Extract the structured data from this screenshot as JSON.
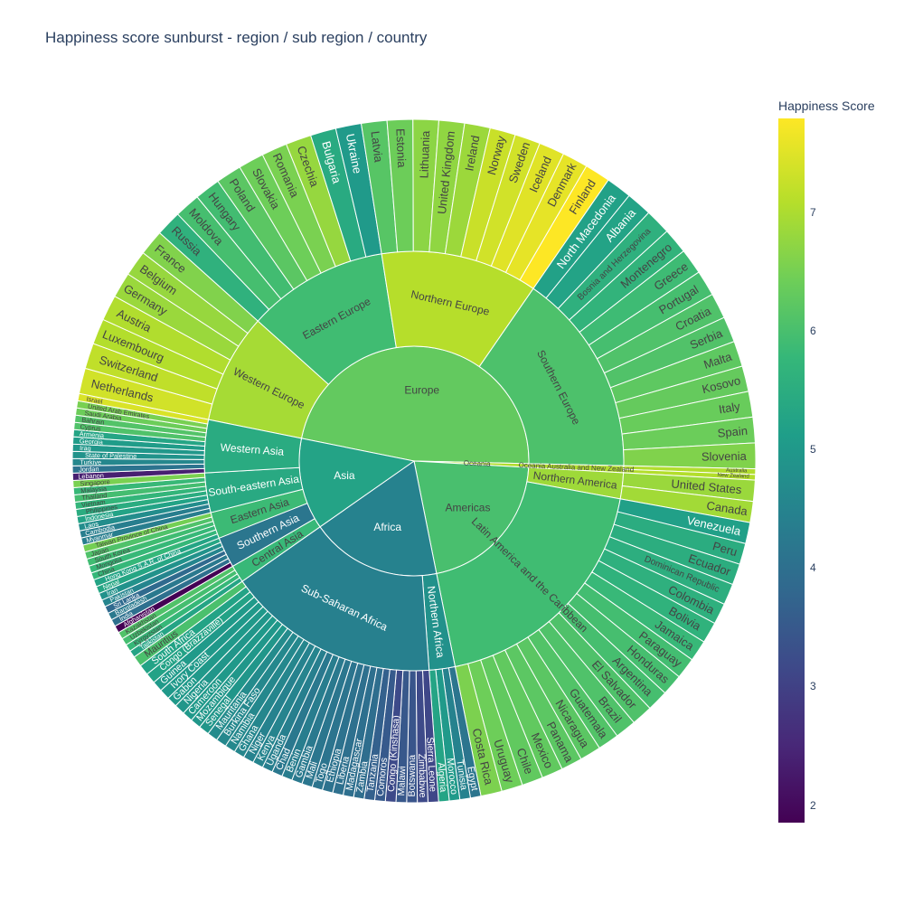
{
  "title": "Happiness score sunburst - region / sub region / country",
  "colorbar": {
    "title": "Happiness Score",
    "ticks": [
      2,
      3,
      4,
      5,
      6,
      7
    ],
    "range": [
      1.86,
      7.8
    ]
  },
  "chart_data": {
    "type": "sunburst",
    "title": "Happiness score sunburst - region / sub region / country",
    "color_scale": "viridis",
    "color_range": [
      1.86,
      7.8
    ],
    "regions": [
      {
        "name": "Europe",
        "value": 6.35,
        "subregions": [
          {
            "name": "Western Europe",
            "value": 7.0,
            "countries": [
              [
                "Netherlands",
                7.4
              ],
              [
                "Switzerland",
                7.24
              ],
              [
                "Luxembourg",
                7.12
              ],
              [
                "Austria",
                7.1
              ],
              [
                "Germany",
                6.89
              ],
              [
                "Belgium",
                6.86
              ],
              [
                "France",
                6.66
              ]
            ]
          },
          {
            "name": "Eastern Europe",
            "value": 5.95,
            "countries": [
              [
                "Russia",
                5.66
              ],
              [
                "Moldova",
                6.02
              ],
              [
                "Hungary",
                5.97
              ],
              [
                "Poland",
                6.26
              ],
              [
                "Slovakia",
                6.47
              ],
              [
                "Romania",
                6.59
              ],
              [
                "Czechia",
                6.85
              ],
              [
                "Bulgaria",
                5.47
              ],
              [
                "Ukraine",
                5.07
              ]
            ]
          },
          {
            "name": "Northern Europe",
            "value": 7.15,
            "countries": [
              [
                "Latvia",
                6.21
              ],
              [
                "Estonia",
                6.46
              ],
              [
                "Lithuania",
                6.76
              ],
              [
                "United Kingdom",
                6.8
              ],
              [
                "Ireland",
                6.91
              ],
              [
                "Norway",
                7.32
              ],
              [
                "Sweden",
                7.4
              ],
              [
                "Iceland",
                7.53
              ],
              [
                "Denmark",
                7.59
              ],
              [
                "Finland",
                7.8
              ]
            ]
          },
          {
            "name": "Southern Europe",
            "value": 6.1,
            "countries": [
              [
                "North Macedonia",
                5.25
              ],
              [
                "Albania",
                5.28
              ],
              [
                "Bosnia and Herzegovina",
                5.63
              ],
              [
                "Montenegro",
                5.72
              ],
              [
                "Greece",
                5.93
              ],
              [
                "Portugal",
                6.02
              ],
              [
                "Croatia",
                6.13
              ],
              [
                "Serbia",
                6.14
              ],
              [
                "Malta",
                6.3
              ],
              [
                "Kosovo",
                6.37
              ],
              [
                "Italy",
                6.41
              ],
              [
                "Spain",
                6.44
              ],
              [
                "Slovenia",
                6.65
              ]
            ]
          }
        ]
      },
      {
        "name": "Oceania",
        "value": 7.1,
        "subregions": [
          {
            "name": "Australia and New Zealand",
            "value": 7.1,
            "countries": [
              [
                "Australia",
                7.1
              ],
              [
                "New Zealand",
                7.12
              ]
            ]
          }
        ]
      },
      {
        "name": "Americas",
        "value": 6.05,
        "subregions": [
          {
            "name": "Northern America",
            "value": 6.93,
            "countries": [
              [
                "United States",
                6.89
              ],
              [
                "Canada",
                6.96
              ]
            ]
          },
          {
            "name": "Latin America and the Caribbean",
            "value": 5.95,
            "countries": [
              [
                "Venezuela",
                5.21
              ],
              [
                "Peru",
                5.53
              ],
              [
                "Ecuador",
                5.56
              ],
              [
                "Dominican Republic",
                5.57
              ],
              [
                "Colombia",
                5.63
              ],
              [
                "Bolivia",
                5.68
              ],
              [
                "Jamaica",
                5.85
              ],
              [
                "Paraguay",
                5.98
              ],
              [
                "Honduras",
                6.02
              ],
              [
                "Argentina",
                6.02
              ],
              [
                "El Salvador",
                6.12
              ],
              [
                "Brazil",
                6.13
              ],
              [
                "Guatemala",
                6.15
              ],
              [
                "Nicaragua",
                6.26
              ],
              [
                "Panama",
                6.27
              ],
              [
                "Mexico",
                6.33
              ],
              [
                "Chile",
                6.33
              ],
              [
                "Uruguay",
                6.47
              ],
              [
                "Costa Rica",
                6.61
              ]
            ]
          }
        ]
      },
      {
        "name": "Africa",
        "value": 4.5,
        "subregions": [
          {
            "name": "Northern Africa",
            "value": 4.85,
            "countries": [
              [
                "Egypt",
                4.17
              ],
              [
                "Tunisia",
                4.5
              ],
              [
                "Morocco",
                5.06
              ],
              [
                "Algeria",
                5.33
              ]
            ]
          },
          {
            "name": "Sub-Saharan Africa",
            "value": 4.45,
            "countries": [
              [
                "Sierra Leone",
                3.14
              ],
              [
                "Zimbabwe",
                3.2
              ],
              [
                "Botswana",
                3.44
              ],
              [
                "Malawi",
                3.5
              ],
              [
                "Congo (Kinshasa)",
                3.21
              ],
              [
                "Comoros",
                3.55
              ],
              [
                "Tanzania",
                3.69
              ],
              [
                "Zambia",
                3.98
              ],
              [
                "Madagascar",
                4.02
              ],
              [
                "Liberia",
                4.04
              ],
              [
                "Ethiopia",
                4.09
              ],
              [
                "Togo",
                4.14
              ],
              [
                "Mali",
                4.2
              ],
              [
                "Gambia",
                4.28
              ],
              [
                "Benin",
                4.37
              ],
              [
                "Chad",
                4.25
              ],
              [
                "Uganda",
                4.43
              ],
              [
                "Kenya",
                4.54
              ],
              [
                "Niger",
                4.5
              ],
              [
                "Ghana",
                4.6
              ],
              [
                "Namibia",
                4.63
              ],
              [
                "Burkina Faso",
                4.64
              ],
              [
                "Mauritania",
                4.72
              ],
              [
                "Senegal",
                4.98
              ],
              [
                "Mozambique",
                5.0
              ],
              [
                "Cameroon",
                5.05
              ],
              [
                "Nigeria",
                4.98
              ],
              [
                "Gabon",
                5.04
              ],
              [
                "Ivory Coast",
                5.05
              ],
              [
                "Guinea",
                5.07
              ],
              [
                "Congo (Brazzaville)",
                5.27
              ],
              [
                "South Africa",
                5.28
              ],
              [
                "Mauritius",
                6.07
              ]
            ]
          }
        ]
      },
      {
        "name": "Asia",
        "value": 5.3,
        "subregions": [
          {
            "name": "Central Asia",
            "value": 5.85,
            "countries": [
              [
                "Tajikistan",
                5.33
              ],
              [
                "Kyrgyzstan",
                5.83
              ],
              [
                "Uzbekistan",
                6.01
              ],
              [
                "Kazakhstan",
                6.14
              ]
            ]
          },
          {
            "name": "Southern Asia",
            "value": 4.2,
            "countries": [
              [
                "Afghanistan",
                1.86
              ],
              [
                "India",
                4.04
              ],
              [
                "Bangladesh",
                4.28
              ],
              [
                "Sri Lanka",
                3.9
              ],
              [
                "Pakistan",
                4.56
              ],
              [
                "Iran",
                4.88
              ],
              [
                "Nepal",
                5.36
              ]
            ]
          },
          {
            "name": "Eastern Asia",
            "value": 5.9,
            "countries": [
              [
                "Hong Kong S.A.R. of China",
                5.31
              ],
              [
                "China",
                5.82
              ],
              [
                "Mongolia",
                5.84
              ],
              [
                "South Korea",
                5.95
              ],
              [
                "Japan",
                6.13
              ],
              [
                "Taiwan Province of China",
                6.54
              ]
            ]
          },
          {
            "name": "South-eastern Asia",
            "value": 5.45,
            "countries": [
              [
                "Myanmar",
                4.39
              ],
              [
                "Cambodia",
                4.39
              ],
              [
                "Laos",
                4.75
              ],
              [
                "Indonesia",
                5.28
              ],
              [
                "Philippines",
                5.52
              ],
              [
                "Vietnam",
                5.76
              ],
              [
                "Thailand",
                6.0
              ],
              [
                "Malaysia",
                5.86
              ],
              [
                "Singapore",
                6.59
              ]
            ]
          },
          {
            "name": "Western Asia",
            "value": 5.5,
            "countries": [
              [
                "Lebanon",
                2.39
              ],
              [
                "Jordan",
                4.12
              ],
              [
                "Turkiye",
                4.61
              ],
              [
                "State of Palestine",
                4.91
              ],
              [
                "Iraq",
                5.0
              ],
              [
                "Georgia",
                5.11
              ],
              [
                "Armenia",
                5.34
              ],
              [
                "Cyprus",
                6.13
              ],
              [
                "Bahrain",
                6.17
              ],
              [
                "Saudi Arabia",
                6.46
              ],
              [
                "United Arab Emirates",
                6.57
              ],
              [
                "Israel",
                7.47
              ]
            ]
          }
        ]
      }
    ]
  }
}
